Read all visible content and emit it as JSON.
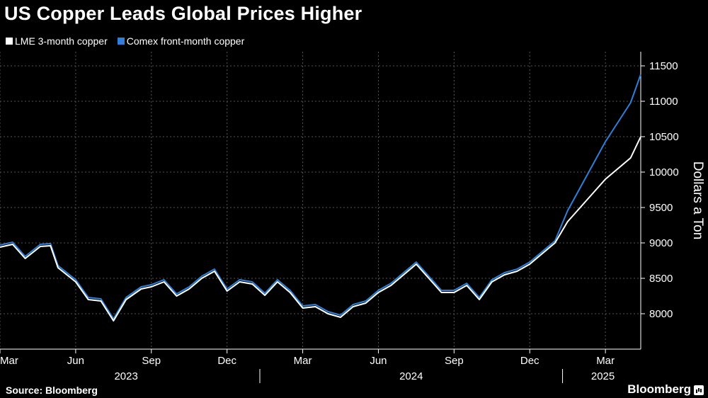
{
  "title": "US Copper Leads Global Prices Higher",
  "source": "Source: Bloomberg",
  "brand": "Bloomberg",
  "chart_data": {
    "type": "line",
    "ylabel": "Dollars a Ton",
    "ylim": [
      7500,
      11700
    ],
    "yticks": [
      8000,
      8500,
      9000,
      9500,
      10000,
      10500,
      11000,
      11500
    ],
    "x_month_ticks": [
      "Mar",
      "Jun",
      "Sep",
      "Dec",
      "Mar",
      "Jun",
      "Sep",
      "Dec",
      "Mar"
    ],
    "x_year_labels": [
      "2023",
      "2024",
      "2025"
    ],
    "grid": true,
    "legend_position": "top-left",
    "x_range": [
      0,
      25.4
    ],
    "series": [
      {
        "name": "LME 3-month copper",
        "color": "#ffffff",
        "points": [
          [
            0,
            8940
          ],
          [
            0.5,
            8980
          ],
          [
            1,
            8780
          ],
          [
            1.6,
            8950
          ],
          [
            2,
            8960
          ],
          [
            2.3,
            8650
          ],
          [
            3,
            8450
          ],
          [
            3.5,
            8200
          ],
          [
            4,
            8180
          ],
          [
            4.5,
            7900
          ],
          [
            5,
            8200
          ],
          [
            5.6,
            8350
          ],
          [
            6,
            8380
          ],
          [
            6.5,
            8450
          ],
          [
            7,
            8250
          ],
          [
            7.5,
            8350
          ],
          [
            8,
            8500
          ],
          [
            8.5,
            8600
          ],
          [
            9,
            8320
          ],
          [
            9.5,
            8450
          ],
          [
            10,
            8420
          ],
          [
            10.5,
            8260
          ],
          [
            11,
            8450
          ],
          [
            11.5,
            8300
          ],
          [
            12,
            8080
          ],
          [
            12.5,
            8100
          ],
          [
            13,
            8000
          ],
          [
            13.5,
            7950
          ],
          [
            14,
            8100
          ],
          [
            14.5,
            8150
          ],
          [
            15,
            8300
          ],
          [
            15.5,
            8400
          ],
          [
            16,
            8550
          ],
          [
            16.5,
            8700
          ],
          [
            17,
            8500
          ],
          [
            17.5,
            8300
          ],
          [
            18,
            8300
          ],
          [
            18.5,
            8400
          ],
          [
            19,
            8200
          ],
          [
            19.5,
            8450
          ],
          [
            20,
            8550
          ],
          [
            20.5,
            8600
          ],
          [
            21,
            8700
          ],
          [
            21.5,
            8850
          ],
          [
            22,
            9000
          ],
          [
            22.5,
            9300
          ],
          [
            23,
            9500
          ],
          [
            23.5,
            9700
          ],
          [
            24,
            9900
          ],
          [
            24.5,
            10050
          ],
          [
            25,
            10200
          ],
          [
            25.4,
            10500
          ]
        ]
      },
      {
        "name": "Comex front-month copper",
        "color": "#2f7fd8",
        "points": []
      }
    ]
  }
}
